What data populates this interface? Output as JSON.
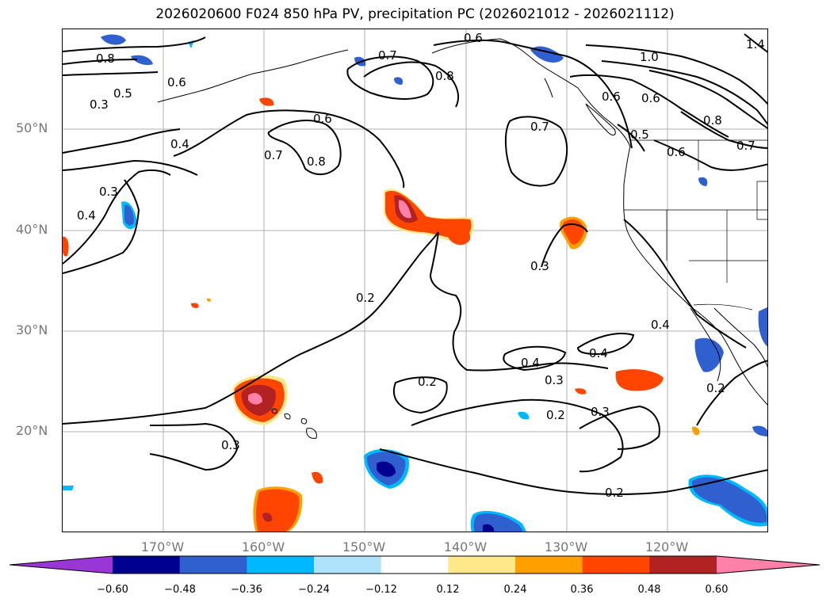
{
  "title": "2026020600 F024 850 hPa PV, precipitation PC (2026021012 - 2026021112)",
  "latitude_labels": [
    "50°N",
    "40°N",
    "30°N",
    "20°N"
  ],
  "longitude_labels": [
    "170°W",
    "160°W",
    "150°W",
    "140°W",
    "130°W",
    "120°W"
  ],
  "contour_labels": [
    "0.8",
    "0.6",
    "0.5",
    "0.4",
    "0.3",
    "0.6",
    "0.7",
    "0.8",
    "0.7",
    "0.8",
    "0.6",
    "0.7",
    "0.6",
    "0.6",
    "1.0",
    "0.8",
    "0.7",
    "0.6",
    "1.4",
    "0.5",
    "0.2",
    "0.3",
    "0.4",
    "0.4",
    "0.4",
    "0.3",
    "0.2",
    "0.2",
    "0.3",
    "0.3",
    "0.2",
    "0.2",
    "0.3",
    "0.4"
  ],
  "colorbar": {
    "ticks": [
      "−0.60",
      "−0.48",
      "−0.36",
      "−0.24",
      "−0.12",
      "0.12",
      "0.24",
      "0.36",
      "0.48",
      "0.60"
    ],
    "colors": [
      "#9a35d6",
      "#000090",
      "#3060d0",
      "#00b8ff",
      "#aee3fb",
      "#ffffff",
      "#ffe88a",
      "#ffa000",
      "#ff4500",
      "#b22222",
      "#ff80a8"
    ]
  }
}
